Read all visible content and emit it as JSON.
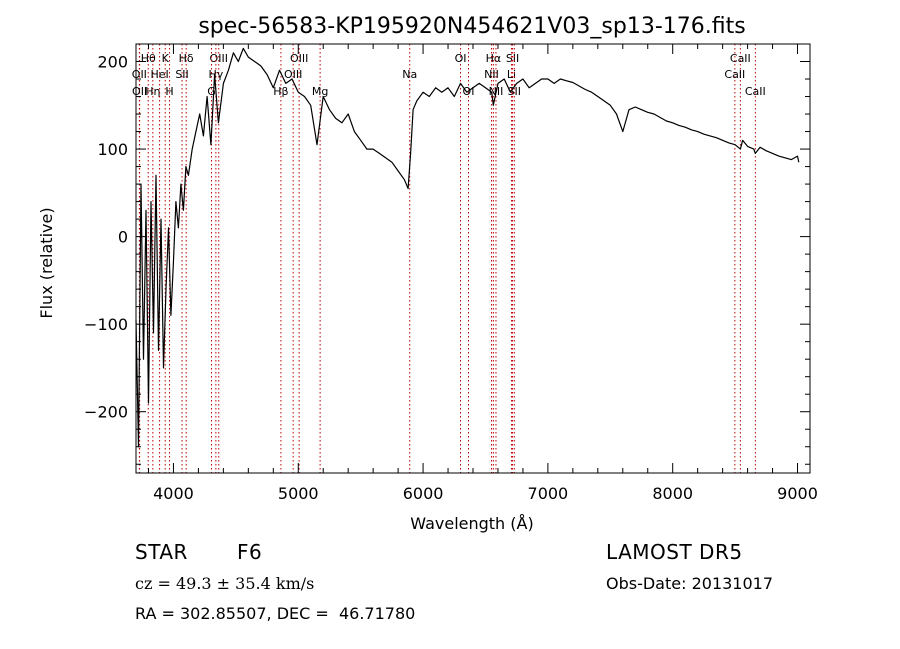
{
  "chart_data": {
    "type": "line",
    "title": "spec-56583-KP195920N454621V03_sp13-176.fits",
    "xlabel": "Wavelength (Å)",
    "ylabel": "Flux (relative)",
    "xlim": [
      3700,
      9100
    ],
    "ylim": [
      -270,
      220
    ],
    "xticks": [
      4000,
      5000,
      6000,
      7000,
      8000,
      9000
    ],
    "yticks": [
      -200,
      -100,
      0,
      100,
      200
    ],
    "grid": false,
    "line_color": "#000000",
    "marker_color": "#c00000",
    "series": [
      {
        "x": [
          3700,
          3720,
          3740,
          3760,
          3780,
          3800,
          3820,
          3840,
          3860,
          3880,
          3900,
          3920,
          3940,
          3960,
          3980,
          4000,
          4020,
          4040,
          4060,
          4080,
          4100,
          4120,
          4150,
          4180,
          4210,
          4240,
          4270,
          4300,
          4330,
          4360,
          4400,
          4440,
          4480,
          4520,
          4560,
          4600,
          4650,
          4700,
          4750,
          4800,
          4850,
          4900,
          4950,
          5000,
          5050,
          5100,
          5150,
          5200,
          5250,
          5300,
          5350,
          5400,
          5450,
          5500,
          5550,
          5600,
          5650,
          5700,
          5750,
          5800,
          5850,
          5880,
          5900,
          5920,
          5950,
          6000,
          6050,
          6100,
          6150,
          6200,
          6250,
          6300,
          6350,
          6400,
          6450,
          6500,
          6550,
          6563,
          6600,
          6650,
          6700,
          6750,
          6800,
          6850,
          6900,
          6950,
          7000,
          7050,
          7100,
          7150,
          7200,
          7250,
          7300,
          7350,
          7400,
          7450,
          7500,
          7550,
          7600,
          7650,
          7700,
          7750,
          7800,
          7850,
          7900,
          7950,
          8000,
          8050,
          8100,
          8150,
          8200,
          8250,
          8300,
          8350,
          8400,
          8450,
          8500,
          8542,
          8560,
          8600,
          8650,
          8662,
          8700,
          8750,
          8800,
          8850,
          8900,
          8950,
          9000,
          9010
        ],
        "y": [
          -95,
          -240,
          60,
          -140,
          30,
          -190,
          40,
          -110,
          70,
          -130,
          20,
          -150,
          -60,
          10,
          -90,
          -30,
          40,
          10,
          60,
          30,
          80,
          70,
          100,
          120,
          140,
          115,
          160,
          105,
          185,
          130,
          175,
          190,
          210,
          200,
          215,
          205,
          200,
          195,
          185,
          170,
          190,
          175,
          180,
          165,
          160,
          150,
          105,
          160,
          145,
          135,
          130,
          140,
          120,
          110,
          100,
          100,
          95,
          90,
          85,
          75,
          65,
          55,
          95,
          145,
          155,
          165,
          160,
          170,
          165,
          170,
          160,
          175,
          165,
          170,
          175,
          170,
          165,
          150,
          175,
          180,
          165,
          175,
          180,
          170,
          175,
          180,
          180,
          175,
          180,
          178,
          176,
          172,
          168,
          165,
          160,
          155,
          150,
          140,
          120,
          145,
          148,
          145,
          142,
          140,
          136,
          132,
          130,
          127,
          125,
          122,
          120,
          117,
          115,
          113,
          110,
          107,
          105,
          100,
          110,
          103,
          100,
          95,
          102,
          98,
          95,
          92,
          90,
          88,
          92,
          85
        ]
      }
    ],
    "lines": [
      {
        "label": "Hθ",
        "x": 3798,
        "row": 0
      },
      {
        "label": "OII",
        "x": 3727,
        "row": 1
      },
      {
        "label": "OII",
        "x": 3729,
        "row": 2
      },
      {
        "label": "Hη",
        "x": 3835,
        "row": 2
      },
      {
        "label": "K",
        "x": 3934,
        "row": 0
      },
      {
        "label": "HeI",
        "x": 3889,
        "row": 1
      },
      {
        "label": "H",
        "x": 3969,
        "row": 2
      },
      {
        "label": "Hδ",
        "x": 4102,
        "row": 0
      },
      {
        "label": "SII",
        "x": 4069,
        "row": 1
      },
      {
        "label": "OIII",
        "x": 4363,
        "row": 0
      },
      {
        "label": "Hγ",
        "x": 4340,
        "row": 1
      },
      {
        "label": "G",
        "x": 4305,
        "row": 2
      },
      {
        "label": "OIII",
        "x": 5007,
        "row": 0
      },
      {
        "label": "OIII",
        "x": 4959,
        "row": 1
      },
      {
        "label": "Hβ",
        "x": 4861,
        "row": 2
      },
      {
        "label": "Mg",
        "x": 5175,
        "row": 2
      },
      {
        "label": "Na",
        "x": 5893,
        "row": 1
      },
      {
        "label": "OI",
        "x": 6300,
        "row": 0
      },
      {
        "label": "OI",
        "x": 6364,
        "row": 2
      },
      {
        "label": "Hα",
        "x": 6563,
        "row": 0
      },
      {
        "label": "SII",
        "x": 6717,
        "row": 0
      },
      {
        "label": "NII",
        "x": 6548,
        "row": 1
      },
      {
        "label": "Li",
        "x": 6708,
        "row": 1
      },
      {
        "label": "NII",
        "x": 6584,
        "row": 2
      },
      {
        "label": "SII",
        "x": 6731,
        "row": 2
      },
      {
        "label": "CaII",
        "x": 8542,
        "row": 0
      },
      {
        "label": "CaII",
        "x": 8498,
        "row": 1
      },
      {
        "label": "CaII",
        "x": 8662,
        "row": 2
      }
    ]
  },
  "info": {
    "object_type": "STAR",
    "subclass": "F6",
    "survey": "LAMOST DR5",
    "redshift": "cz = 49.3 ± 35.4 km/s",
    "obs_date": "Obs-Date: 20131017",
    "coords": "RA = 302.85507, DEC =  46.71780"
  }
}
